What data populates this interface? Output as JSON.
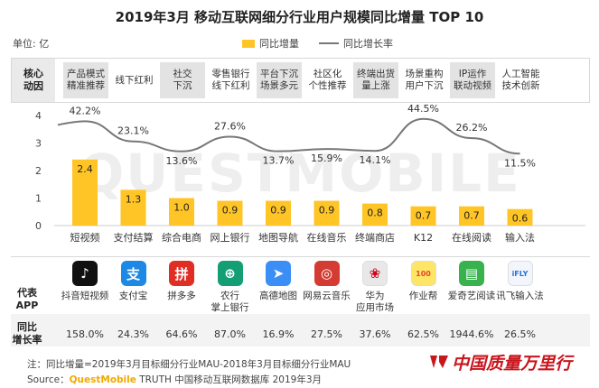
{
  "title": "2019年3月 移动互联网细分行业用户规模同比增量 TOP 10",
  "unit_label": "单位: 亿",
  "legend": {
    "bar": "同比增量",
    "line": "同比增长率"
  },
  "watermark": "QUESTMOBILE",
  "driver_header": "核心\n动因",
  "drivers": [
    {
      "text": "产品模式\n精准推荐",
      "highlight": true
    },
    {
      "text": "线下红利",
      "highlight": false
    },
    {
      "text": "社交\n下沉",
      "highlight": true
    },
    {
      "text": "零售银行\n线下红利",
      "highlight": false
    },
    {
      "text": "平台下沉\n场景多元",
      "highlight": true
    },
    {
      "text": "社区化\n个性推荐",
      "highlight": false
    },
    {
      "text": "终端出货\n量上涨",
      "highlight": true
    },
    {
      "text": "场景重构\n用户下沉",
      "highlight": false
    },
    {
      "text": "IP运作\n联动视频",
      "highlight": true
    },
    {
      "text": "人工智能\n技术创新",
      "highlight": false
    }
  ],
  "chart_data": {
    "type": "bar",
    "categories": [
      "短视频",
      "支付结算",
      "综合电商",
      "网上银行",
      "地图导航",
      "在线音乐",
      "终端商店",
      "K12",
      "在线阅读",
      "输入法"
    ],
    "series": [
      {
        "name": "同比增量",
        "values": [
          2.4,
          1.3,
          1.0,
          0.9,
          0.9,
          0.9,
          0.8,
          0.7,
          0.7,
          0.6
        ],
        "value_labels": [
          "2.4",
          "1.3",
          "1.0",
          "0.9",
          "0.9",
          "0.9",
          "0.8",
          "0.7",
          "0.7",
          "0.6"
        ]
      },
      {
        "name": "同比增长率",
        "values": [
          42.2,
          23.1,
          13.6,
          27.6,
          13.7,
          15.9,
          14.1,
          44.5,
          26.2,
          11.5
        ],
        "value_labels": [
          "42.2%",
          "23.1%",
          "13.6%",
          "27.6%",
          "13.7%",
          "15.9%",
          "14.1%",
          "44.5%",
          "26.2%",
          "11.5%"
        ]
      }
    ],
    "ylim": [
      0,
      4
    ],
    "yticks": [
      "0",
      "1",
      "2",
      "3",
      "4"
    ],
    "bar_color": "#FFC425",
    "line_color": "#777777"
  },
  "apps_header": "代表\nAPP",
  "apps": [
    {
      "name": "抖音短视频",
      "icon": "tiktok-icon",
      "glyph": "♪",
      "color": "#111111"
    },
    {
      "name": "支付宝",
      "icon": "alipay-icon",
      "glyph": "支",
      "color": "#1E88E5"
    },
    {
      "name": "拼多多",
      "icon": "pinduoduo-icon",
      "glyph": "拼",
      "color": "#E02E24"
    },
    {
      "name": "农行\n掌上银行",
      "icon": "abc-bank-icon",
      "glyph": "⊕",
      "color": "#139E73"
    },
    {
      "name": "高德地图",
      "icon": "amap-icon",
      "glyph": "➤",
      "color": "#3A8EF6"
    },
    {
      "name": "网易云音乐",
      "icon": "netease-music-icon",
      "glyph": "◎",
      "color": "#D43C33"
    },
    {
      "name": "华为\n应用市场",
      "icon": "huawei-appgallery-icon",
      "glyph": "❀",
      "color": "#E8E8E8"
    },
    {
      "name": "作业帮",
      "icon": "zuoyebang-icon",
      "glyph": "100",
      "color": "#FFE566"
    },
    {
      "name": "爱奇艺阅读",
      "icon": "iqiyi-read-icon",
      "glyph": "▤",
      "color": "#37B24D"
    },
    {
      "name": "讯飞输入法",
      "icon": "iflytek-icon",
      "glyph": "iFLY",
      "color": "#F2F6FC"
    }
  ],
  "growth_header": "同比\n增长率",
  "growth_values": [
    "158.0%",
    "24.3%",
    "64.6%",
    "87.0%",
    "16.9%",
    "27.5%",
    "37.6%",
    "62.5%",
    "1944.6%",
    "26.5%"
  ],
  "note": "注：同比增量=2019年3月目标细分行业MAU-2018年3月目标细分行业MAU",
  "source": {
    "prefix": "Source：",
    "brand": "QuestMobile",
    "suffix": " TRUTH 中国移动互联网数据库 2019年3月"
  },
  "corner_logo": "中国质量万里行"
}
